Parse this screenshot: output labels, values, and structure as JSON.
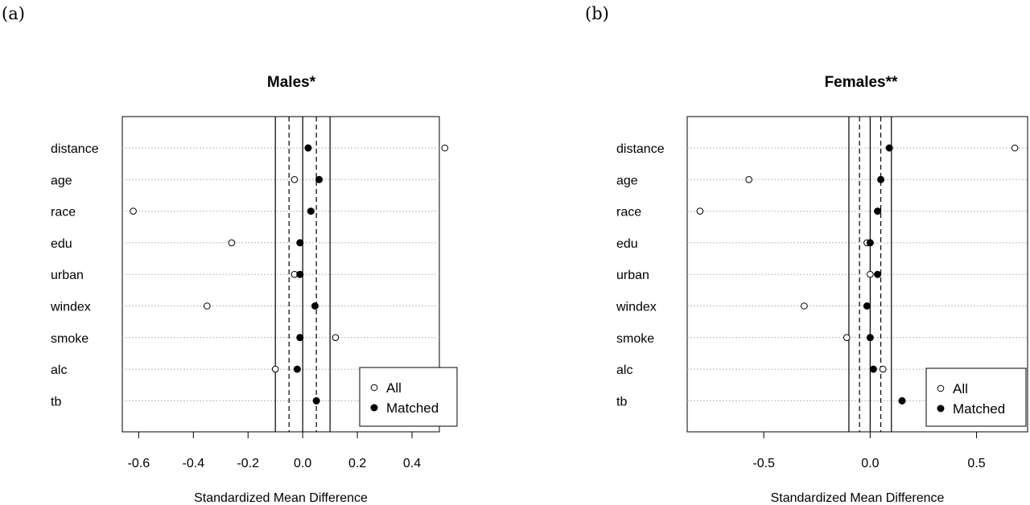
{
  "panel_labels": [
    "(a)",
    "(b)"
  ],
  "chart_data": [
    {
      "type": "scatter",
      "title": "Males*",
      "xlabel": "Standardized Mean Difference",
      "ylabel": "",
      "xlim": [
        -0.66,
        0.5
      ],
      "xticks": [
        -0.6,
        -0.4,
        -0.2,
        0.0,
        0.2,
        0.4
      ],
      "xtick_labels": [
        "-0.6",
        "-0.4",
        "-0.2",
        "0.0",
        "0.2",
        "0.4"
      ],
      "categories": [
        "distance",
        "age",
        "race",
        "edu",
        "urban",
        "windex",
        "smoke",
        "alc",
        "tb"
      ],
      "series": [
        {
          "name": "All",
          "marker": "open-circle",
          "values": [
            0.52,
            -0.03,
            -0.62,
            -0.26,
            -0.03,
            -0.35,
            0.12,
            -0.1,
            0.05
          ]
        },
        {
          "name": "Matched",
          "marker": "filled-circle",
          "values": [
            0.02,
            0.06,
            0.03,
            -0.01,
            -0.01,
            0.045,
            -0.01,
            -0.02,
            0.05
          ]
        }
      ],
      "reference_lines": {
        "solid": [
          -0.1,
          0.0,
          0.1
        ],
        "dashed": [
          -0.05,
          0.05
        ]
      },
      "grid": "horizontal-dotted",
      "legend_position": "bottom-right",
      "legend": [
        "All",
        "Matched"
      ]
    },
    {
      "type": "scatter",
      "title": "Females**",
      "xlabel": "Standardized Mean Difference",
      "ylabel": "",
      "xlim": [
        -0.86,
        0.74
      ],
      "xticks": [
        -0.5,
        0.0,
        0.5
      ],
      "xtick_labels": [
        "-0.5",
        "0.0",
        "0.5"
      ],
      "categories": [
        "distance",
        "age",
        "race",
        "edu",
        "urban",
        "windex",
        "smoke",
        "alc",
        "tb"
      ],
      "series": [
        {
          "name": "All",
          "marker": "open-circle",
          "values": [
            0.68,
            -0.57,
            -0.8,
            -0.015,
            0.0,
            -0.31,
            -0.11,
            0.06,
            0.15
          ]
        },
        {
          "name": "Matched",
          "marker": "filled-circle",
          "values": [
            0.09,
            0.05,
            0.035,
            0.0,
            0.035,
            -0.015,
            0.0,
            0.015,
            0.15
          ]
        }
      ],
      "reference_lines": {
        "solid": [
          -0.1,
          0.0,
          0.1
        ],
        "dashed": [
          -0.05,
          0.05
        ]
      },
      "grid": "horizontal-dotted",
      "legend_position": "bottom-right",
      "legend": [
        "All",
        "Matched"
      ]
    }
  ]
}
